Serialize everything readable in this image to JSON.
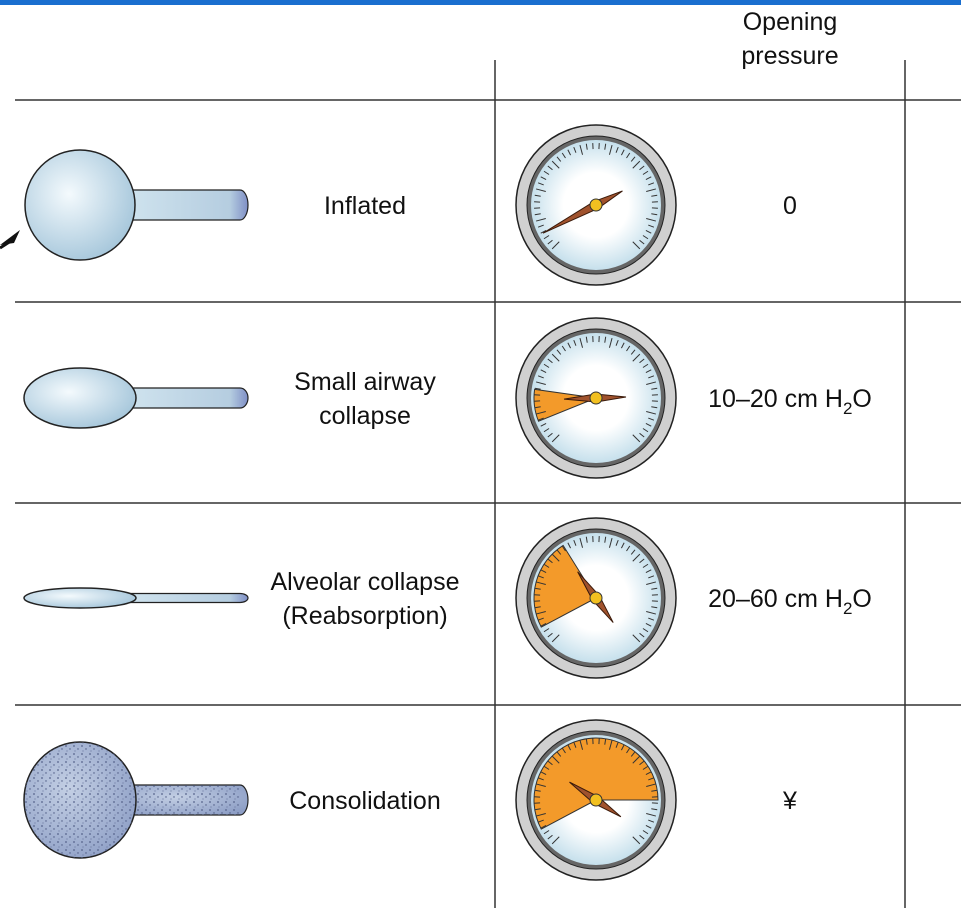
{
  "header": {
    "title_lines": [
      "Opening",
      "pressure"
    ]
  },
  "rows": [
    {
      "label_lines": [
        "Inflated"
      ],
      "pressure": {
        "text": "0"
      }
    },
    {
      "label_lines": [
        "Small airway",
        "collapse"
      ],
      "pressure": {
        "text": "10–20 cm H",
        "sub": "2",
        "suffix": "O"
      }
    },
    {
      "label_lines": [
        "Alveolar collapse",
        "(Reabsorption)"
      ],
      "pressure": {
        "text": "20–60 cm H",
        "sub": "2",
        "suffix": "O"
      }
    },
    {
      "label_lines": [
        "Consolidation"
      ],
      "pressure": {
        "text": "¥"
      }
    }
  ]
}
